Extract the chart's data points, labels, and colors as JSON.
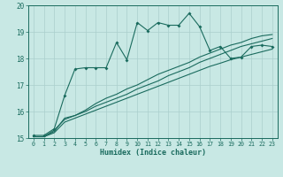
{
  "xlabel": "Humidex (Indice chaleur)",
  "xlim": [
    -0.5,
    23.5
  ],
  "ylim": [
    15,
    20
  ],
  "xticks": [
    0,
    1,
    2,
    3,
    4,
    5,
    6,
    7,
    8,
    9,
    10,
    11,
    12,
    13,
    14,
    15,
    16,
    17,
    18,
    19,
    20,
    21,
    22,
    23
  ],
  "yticks": [
    15,
    16,
    17,
    18,
    19,
    20
  ],
  "bg_color": "#c8e8e4",
  "line_color": "#1a6b5e",
  "grid_color": "#aacfcc",
  "line1_x": [
    0,
    1,
    2,
    3,
    4,
    5,
    6,
    7,
    8,
    9,
    10,
    11,
    12,
    13,
    14,
    15,
    16,
    17,
    18,
    19,
    20,
    21,
    22,
    23
  ],
  "line1_y": [
    15.1,
    15.1,
    15.35,
    16.6,
    17.6,
    17.65,
    17.65,
    17.65,
    18.6,
    17.95,
    19.35,
    19.05,
    19.35,
    19.25,
    19.25,
    19.7,
    19.2,
    18.3,
    18.45,
    18.0,
    18.05,
    18.45,
    18.5,
    18.45
  ],
  "line2_x": [
    0,
    1,
    2,
    3,
    4,
    5,
    6,
    7,
    8,
    9,
    10,
    11,
    12,
    13,
    14,
    15,
    16,
    17,
    18,
    19,
    20,
    21,
    22,
    23
  ],
  "line2_y": [
    15.05,
    15.05,
    15.2,
    15.6,
    15.75,
    15.9,
    16.05,
    16.2,
    16.35,
    16.5,
    16.65,
    16.8,
    16.95,
    17.1,
    17.25,
    17.4,
    17.55,
    17.7,
    17.82,
    17.95,
    18.05,
    18.15,
    18.25,
    18.35
  ],
  "line3_x": [
    0,
    1,
    2,
    3,
    4,
    5,
    6,
    7,
    8,
    9,
    10,
    11,
    12,
    13,
    14,
    15,
    16,
    17,
    18,
    19,
    20,
    21,
    22,
    23
  ],
  "line3_y": [
    15.05,
    15.05,
    15.3,
    15.7,
    15.85,
    16.0,
    16.2,
    16.35,
    16.5,
    16.65,
    16.85,
    17.0,
    17.15,
    17.35,
    17.5,
    17.65,
    17.85,
    18.0,
    18.15,
    18.3,
    18.45,
    18.55,
    18.65,
    18.75
  ],
  "line4_x": [
    0,
    1,
    2,
    3,
    4,
    5,
    6,
    7,
    8,
    9,
    10,
    11,
    12,
    13,
    14,
    15,
    16,
    17,
    18,
    19,
    20,
    21,
    22,
    23
  ],
  "line4_y": [
    15.05,
    15.05,
    15.25,
    15.75,
    15.85,
    16.05,
    16.3,
    16.5,
    16.65,
    16.85,
    17.0,
    17.2,
    17.4,
    17.55,
    17.7,
    17.85,
    18.05,
    18.2,
    18.35,
    18.5,
    18.6,
    18.75,
    18.85,
    18.9
  ]
}
